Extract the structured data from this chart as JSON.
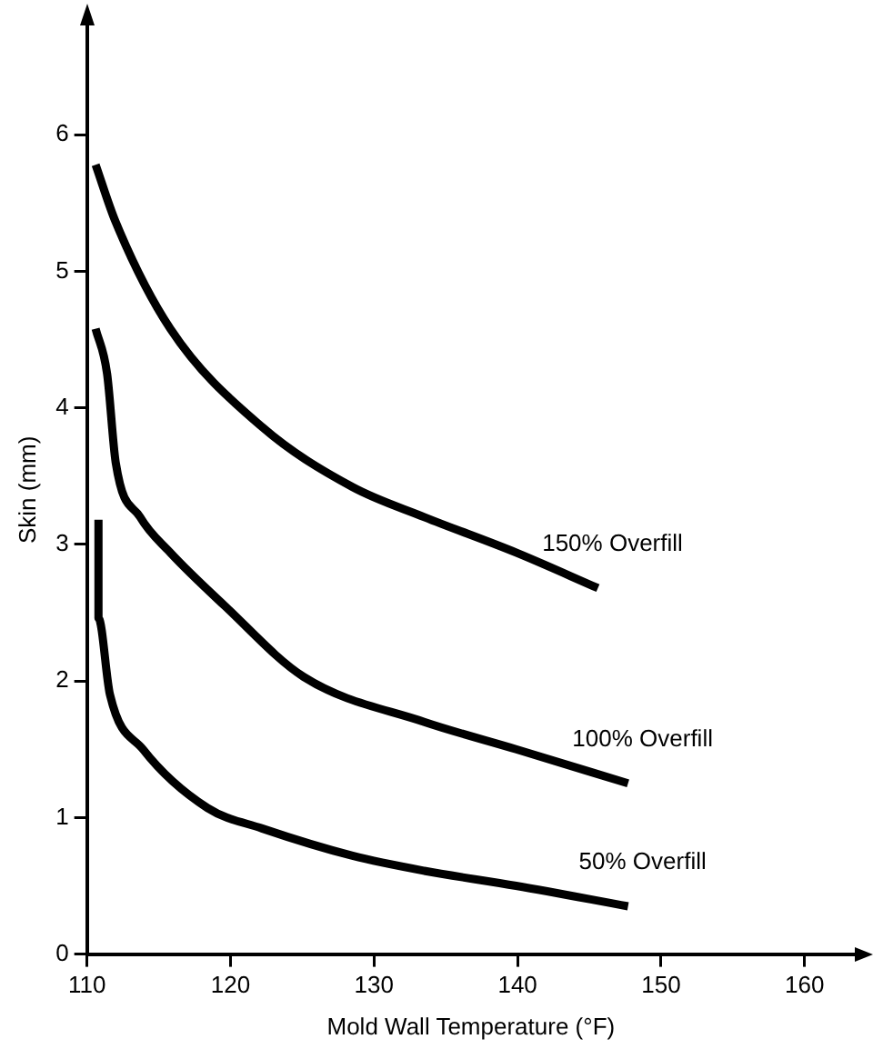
{
  "chart_data": {
    "type": "line",
    "xlabel": "Mold Wall Temperature (°F)",
    "ylabel": "Skin (mm)",
    "xlim": [
      110,
      163.5
    ],
    "xticks": [
      110,
      120,
      130,
      140,
      150,
      160
    ],
    "ylim": [
      0,
      6.8
    ],
    "yticks": [
      0,
      1,
      2,
      3,
      4,
      5,
      6
    ],
    "grid": false,
    "legend": false,
    "marker": "none",
    "line_style": "solid",
    "series": [
      {
        "name": "150% Overfill",
        "color": "#000000",
        "x": [
          110.6,
          112,
          115.8,
          122.2,
          128.5,
          133.5,
          139.9,
          145.6
        ],
        "values": [
          5.78,
          5.36,
          4.58,
          3.86,
          3.42,
          3.2,
          2.94,
          2.68
        ]
      },
      {
        "name": "100% Overfill",
        "color": "#000000",
        "x": [
          110.6,
          111.4,
          112,
          113.7,
          115.8,
          119.6,
          125.1,
          133.5,
          139.9,
          147.7
        ],
        "values": [
          4.58,
          4.25,
          3.6,
          3.2,
          2.94,
          2.55,
          2.03,
          1.7,
          1.5,
          1.25
        ]
      },
      {
        "name": "50% Overfill",
        "color": "#000000",
        "x": [
          110.8,
          110.8,
          111.6,
          113.9,
          118.4,
          122.2,
          128.5,
          133.5,
          139.9,
          147.7
        ],
        "values": [
          3.18,
          2.46,
          1.9,
          1.5,
          1.07,
          0.92,
          0.72,
          0.61,
          0.5,
          0.35
        ]
      }
    ]
  }
}
